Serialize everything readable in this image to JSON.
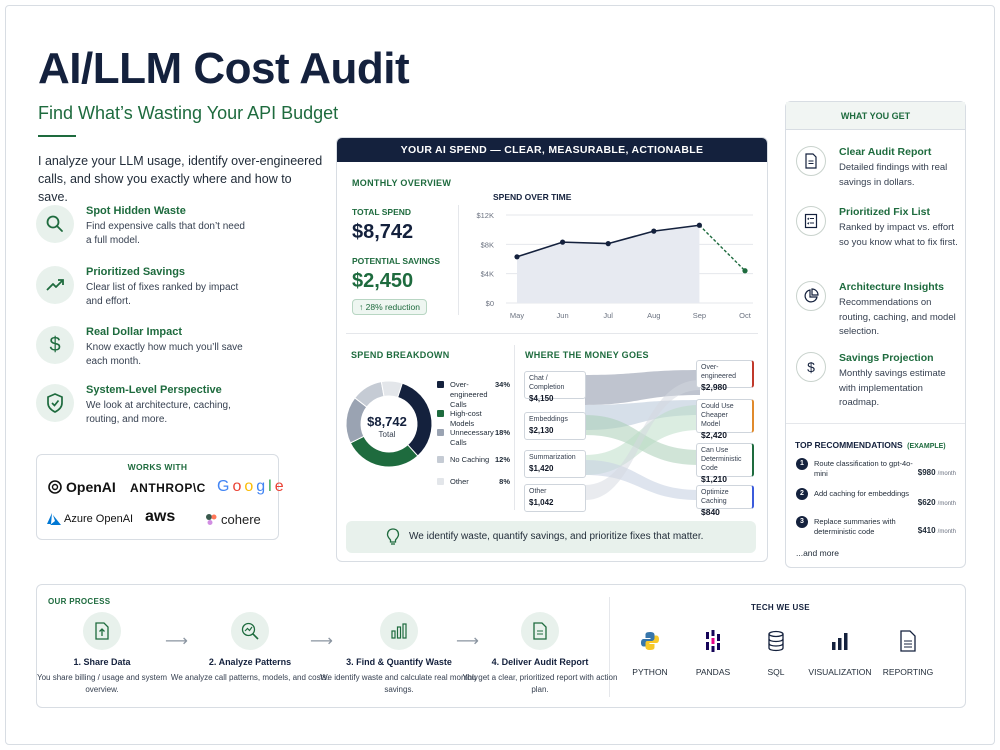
{
  "header": {
    "title": "AI/LLM Cost Audit",
    "subtitle": "Find What’s Wasting Your API Budget",
    "intro": "I analyze your LLM usage, identify over-engineered calls, and show you exactly where and how to save."
  },
  "features": [
    {
      "icon": "search-icon",
      "title": "Spot Hidden Waste",
      "desc": "Find expensive calls that don’t need a full model."
    },
    {
      "icon": "trend-up-icon",
      "title": "Prioritized Savings",
      "desc": "Clear list of fixes ranked by impact and effort."
    },
    {
      "icon": "dollar-icon",
      "title": "Real Dollar Impact",
      "desc": "Know exactly how much you’ll save each month."
    },
    {
      "icon": "shield-icon",
      "title": "System-Level Perspective",
      "desc": "We look at architecture, caching, routing, and more."
    }
  ],
  "works_with": {
    "heading": "WORKS WITH",
    "logos": [
      "OpenAI",
      "ANTHROP\\C",
      "Google",
      "Azure OpenAI",
      "aws",
      "cohere"
    ]
  },
  "spend_card": {
    "header": "YOUR AI SPEND — CLEAR, MEASURABLE, ACTIONABLE",
    "monthly_overview": "MONTHLY OVERVIEW",
    "total_spend_label": "TOTAL SPEND",
    "total_spend": "$8,742",
    "potential_savings_label": "POTENTIAL SAVINGS",
    "potential_savings": "$2,450",
    "reduction_badge": "28% reduction",
    "spend_breakdown": "SPEND BREAKDOWN",
    "donut_center_value": "$8,742",
    "donut_center_label": "Total",
    "where_money_goes": "WHERE THE MONEY GOES",
    "tip": "We identify waste, quantify savings, and prioritize fixes that matter."
  },
  "chart_data": [
    {
      "type": "line",
      "title": "SPEND OVER TIME",
      "categories": [
        "May",
        "Jun",
        "Jul",
        "Aug",
        "Sep",
        "Oct"
      ],
      "yticks": [
        "$12K",
        "$8K",
        "$4K",
        "$0"
      ],
      "ylim": [
        0,
        12000
      ],
      "series": [
        {
          "values": [
            6300,
            8300,
            8100,
            9800,
            10600,
            4400
          ]
        }
      ],
      "projected_from_index": 4,
      "colors": {
        "line": "#14213d",
        "fill": "#e7eaf1",
        "projection": "#1e6b3e"
      }
    },
    {
      "type": "pie",
      "labels": [
        "Over-engineered Calls",
        "High-cost Models",
        "Unnecessary Calls",
        "No Caching",
        "Other"
      ],
      "values": [
        34,
        30,
        18,
        12,
        8
      ],
      "percent_labels": [
        "34%",
        "",
        "18%",
        "12%",
        "8%"
      ],
      "colors": [
        "#14213d",
        "#1e6b3e",
        "#9aa3b2",
        "#c5cbd4",
        "#e3e6ea"
      ]
    },
    {
      "type": "sankey",
      "sources": [
        {
          "label": "Chat / Completion",
          "value": "$4,150"
        },
        {
          "label": "Embeddings",
          "value": "$2,130"
        },
        {
          "label": "Summarization",
          "value": "$1,420"
        },
        {
          "label": "Other",
          "value": "$1,042"
        }
      ],
      "targets": [
        {
          "label": "Over-engineered",
          "value": "$2,980",
          "color": "#c0392b"
        },
        {
          "label": "Could Use Cheaper Model",
          "value": "$2,420",
          "color": "#e08a2c"
        },
        {
          "label": "Can Use Deterministic Code",
          "value": "$1,210",
          "color": "#1e6b3e"
        },
        {
          "label": "Optimize Caching",
          "value": "$840",
          "color": "#3b5bdb"
        }
      ]
    }
  ],
  "what_you_get": {
    "heading": "WHAT YOU GET",
    "items": [
      {
        "icon": "document-icon",
        "title": "Clear Audit Report",
        "desc": "Detailed findings with real savings in dollars."
      },
      {
        "icon": "checklist-icon",
        "title": "Prioritized Fix List",
        "desc": "Ranked by impact vs. effort so you know what to fix first."
      },
      {
        "icon": "pie-chart-icon",
        "title": "Architecture Insights",
        "desc": "Recommendations on routing, caching, and model selection."
      },
      {
        "icon": "dollar-icon",
        "title": "Savings Projection",
        "desc": "Monthly savings estimate with implementation roadmap."
      }
    ]
  },
  "recommendations": {
    "heading": "TOP RECOMMENDATIONS",
    "heading_note": "(EXAMPLE)",
    "items": [
      {
        "num": "1",
        "text": "Route classification to gpt-4o-mini",
        "amount": "$980",
        "unit": "/month"
      },
      {
        "num": "2",
        "text": "Add caching for embeddings",
        "amount": "$620",
        "unit": "/month"
      },
      {
        "num": "3",
        "text": "Replace summaries with deterministic code",
        "amount": "$410",
        "unit": "/month"
      }
    ],
    "more": "...and more"
  },
  "process": {
    "heading": "OUR PROCESS",
    "steps": [
      {
        "icon": "upload-file-icon",
        "title": "1. Share Data",
        "desc": "You share billing / usage and system overview."
      },
      {
        "icon": "magnify-chart-icon",
        "title": "2. Analyze Patterns",
        "desc": "We analyze call patterns, models, and costs."
      },
      {
        "icon": "bar-chart-icon",
        "title": "3. Find & Quantify Waste",
        "desc": "We identify waste and calculate real monthly savings."
      },
      {
        "icon": "report-icon",
        "title": "4. Deliver Audit Report",
        "desc": "You get a clear, prioritized report with action plan."
      }
    ]
  },
  "tech": {
    "heading": "TECH WE USE",
    "items": [
      {
        "icon": "python-icon",
        "label": "PYTHON"
      },
      {
        "icon": "pandas-icon",
        "label": "PANDAS"
      },
      {
        "icon": "database-icon",
        "label": "SQL"
      },
      {
        "icon": "bar-chart-icon",
        "label": "VISUALIZATION"
      },
      {
        "icon": "report-icon",
        "label": "REPORTING"
      }
    ]
  }
}
